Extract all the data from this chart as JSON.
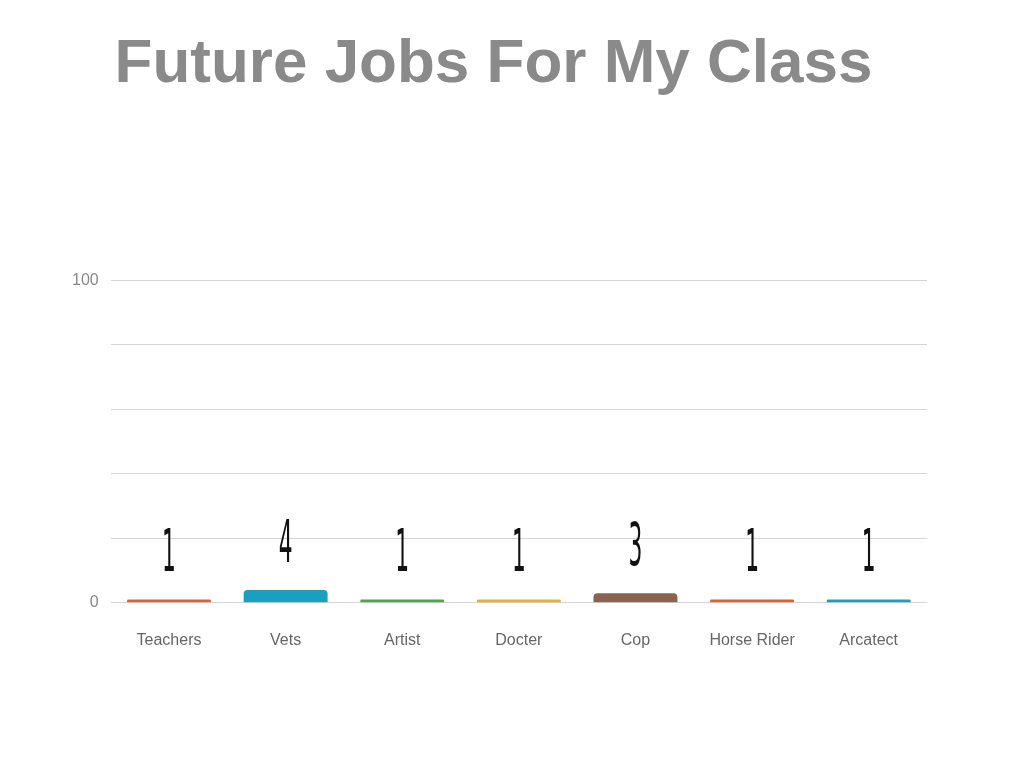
{
  "chart_data": {
    "type": "bar",
    "title": "Future Jobs For My Class",
    "categories": [
      "Teachers",
      "Vets",
      "Artist",
      "Docter",
      "Cop",
      "Horse Rider",
      "Arcatect"
    ],
    "values": [
      1,
      4,
      1,
      1,
      3,
      1,
      1
    ],
    "colors": [
      "#e0603a",
      "#1a9fbf",
      "#4aa84a",
      "#e8b030",
      "#8b6450",
      "#e0603a",
      "#1a9fbf"
    ],
    "ylim": [
      0,
      100
    ],
    "yticks": [
      0,
      {
        "value": 20,
        "label": null
      },
      {
        "value": 40,
        "label": null
      },
      {
        "value": 60,
        "label": null
      },
      {
        "value": 80,
        "label": null
      },
      100
    ],
    "grid": "y",
    "data_labels": true,
    "legend": false
  }
}
